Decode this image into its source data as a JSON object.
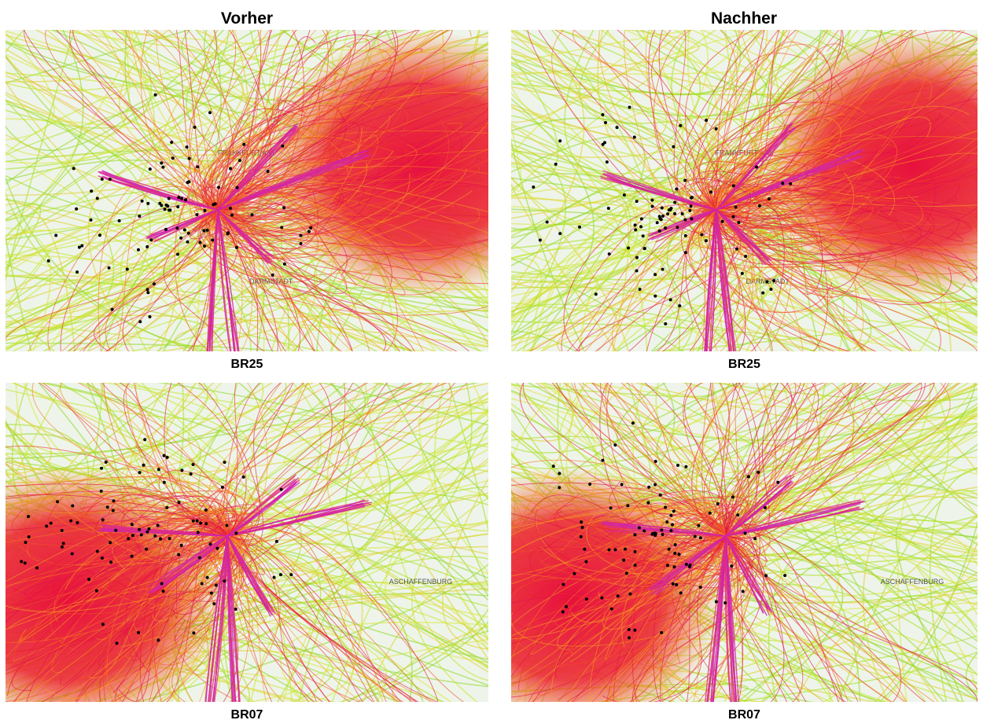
{
  "headers": [
    "Vorher",
    "Nachher"
  ],
  "panels": [
    {
      "caption": "BR25",
      "map_labels": [
        "FRANKFURT a.M.",
        "DARMSTADT"
      ]
    },
    {
      "caption": "BR25",
      "map_labels": [
        "FRANKFURT a.M.",
        "DARMSTADT"
      ]
    },
    {
      "caption": "BR07",
      "map_labels": [
        "ASCHAFFENBURG"
      ]
    },
    {
      "caption": "BR07",
      "map_labels": [
        "ASCHAFFENBURG"
      ]
    }
  ]
}
